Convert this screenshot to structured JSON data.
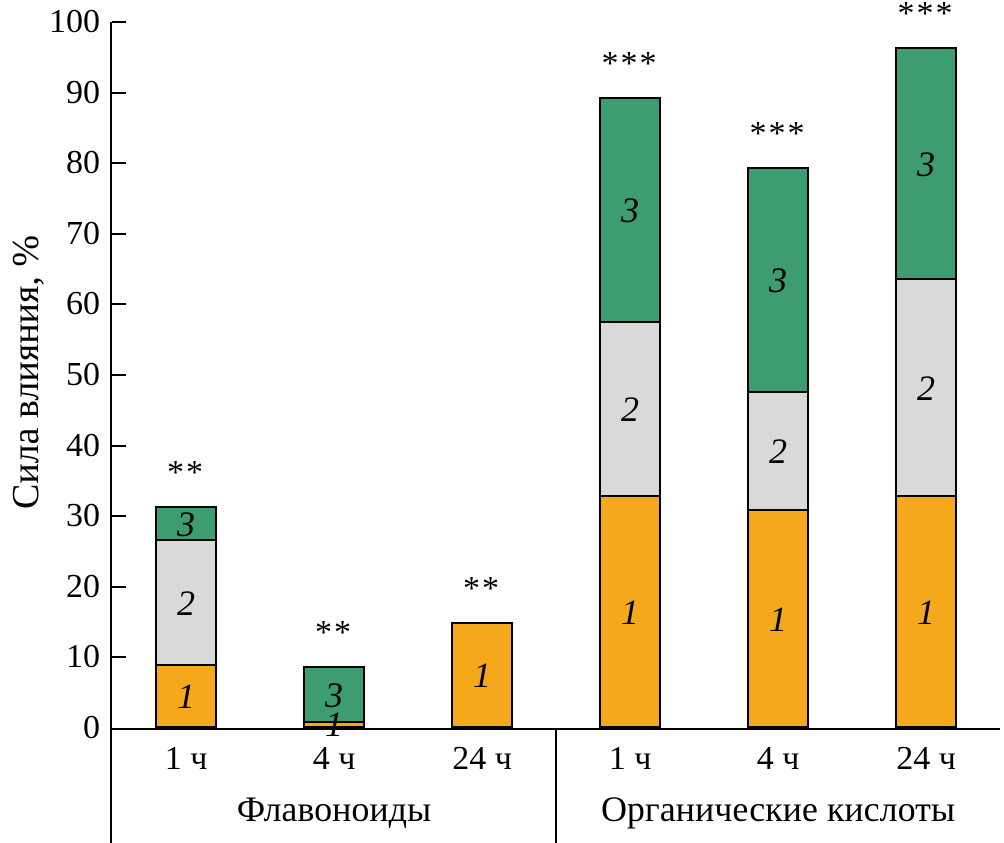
{
  "chart_data": {
    "type": "bar",
    "stacked": true,
    "title": "",
    "ylabel": "Сила влияния, %",
    "xlabel": "",
    "ylim": [
      0,
      100
    ],
    "yticks": [
      0,
      10,
      20,
      30,
      40,
      50,
      60,
      70,
      80,
      90,
      100
    ],
    "grid": false,
    "legend": "none",
    "series": [
      {
        "id": "1",
        "label": "1",
        "color": "#F5A81B"
      },
      {
        "id": "2",
        "label": "2",
        "color": "#D9D9D9"
      },
      {
        "id": "3",
        "label": "3",
        "color": "#3D9C70"
      }
    ],
    "groups": [
      {
        "label": "Флавоноиды",
        "bars": [
          {
            "x": "1 ч",
            "significance": "**",
            "total": 32,
            "segments": [
              {
                "series": "1",
                "value": 9
              },
              {
                "series": "2",
                "value": 18
              },
              {
                "series": "3",
                "value": 5
              }
            ]
          },
          {
            "x": "4 ч",
            "significance": "**",
            "total": 9,
            "segments": [
              {
                "series": "1",
                "value": 1
              },
              {
                "series": "3",
                "value": 8
              }
            ]
          },
          {
            "x": "24 ч",
            "significance": "**",
            "total": 15,
            "segments": [
              {
                "series": "1",
                "value": 15
              }
            ]
          }
        ]
      },
      {
        "label": "Органические кислоты",
        "bars": [
          {
            "x": "1 ч",
            "significance": "***",
            "total": 90,
            "segments": [
              {
                "series": "1",
                "value": 33
              },
              {
                "series": "2",
                "value": 25
              },
              {
                "series": "3",
                "value": 32
              }
            ]
          },
          {
            "x": "4 ч",
            "significance": "***",
            "total": 80,
            "segments": [
              {
                "series": "1",
                "value": 31
              },
              {
                "series": "2",
                "value": 17
              },
              {
                "series": "3",
                "value": 32
              }
            ]
          },
          {
            "x": "24 ч",
            "significance": "***",
            "total": 97,
            "segments": [
              {
                "series": "1",
                "value": 33
              },
              {
                "series": "2",
                "value": 31
              },
              {
                "series": "3",
                "value": 33
              }
            ]
          }
        ]
      }
    ]
  }
}
